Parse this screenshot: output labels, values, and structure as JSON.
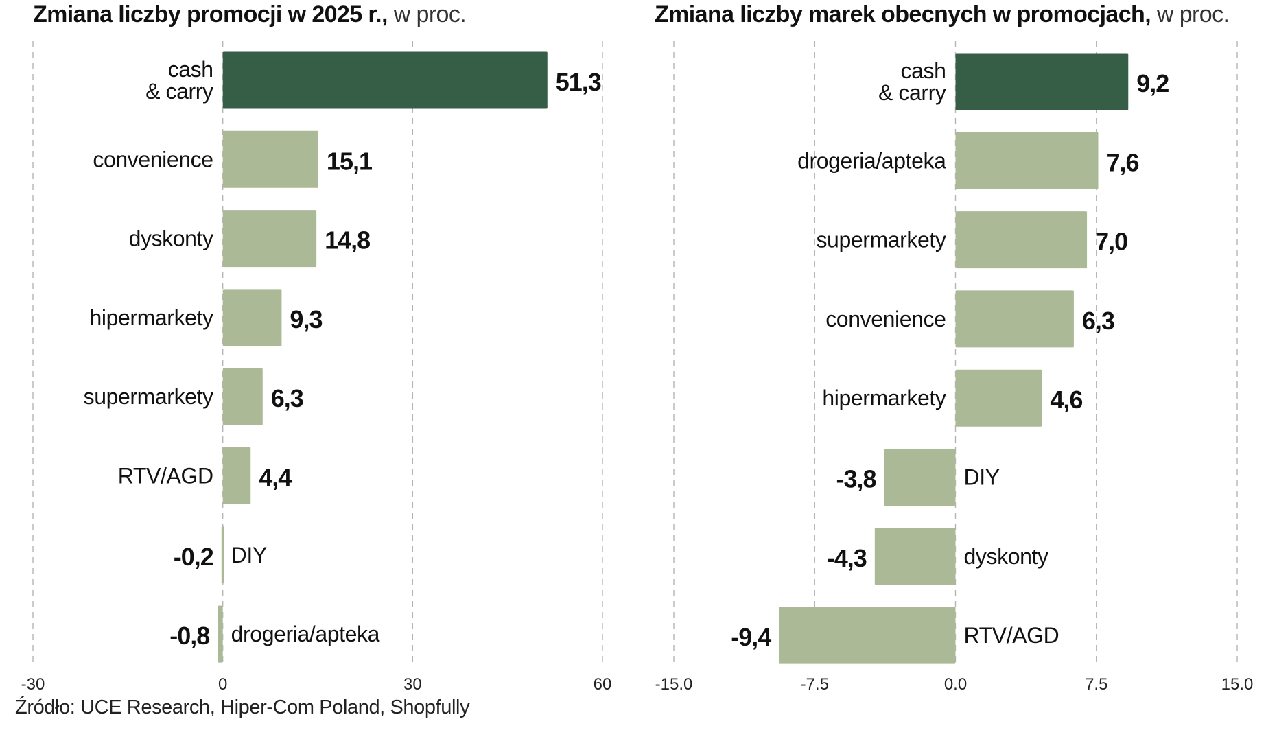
{
  "colors": {
    "highlight": "#365d46",
    "bar": "#abb997",
    "grid": "#b5b5b5",
    "text": "#111111"
  },
  "source": "Źródło: UCE Research, Hiper-Com Poland, Shopfully",
  "chart_data": [
    {
      "type": "bar",
      "orientation": "horizontal",
      "title": "Zmiana liczby promocji w 2025 r.,",
      "subtitle": "w proc.",
      "categories": [
        "cash\n& carry",
        "convenience",
        "dyskonty",
        "hipermarkety",
        "supermarkety",
        "RTV/AGD",
        "DIY",
        "drogeria/apteka"
      ],
      "values": [
        51.3,
        15.1,
        14.8,
        9.3,
        6.3,
        4.4,
        -0.2,
        -0.8
      ],
      "value_labels": [
        "51,3",
        "15,1",
        "14,8",
        "9,3",
        "6,3",
        "4,4",
        "-0,2",
        "-0,8"
      ],
      "highlight_index": 0,
      "xlim": [
        -30,
        60
      ],
      "xticks": [
        -30,
        0,
        30,
        60
      ],
      "xtick_labels": [
        "-30",
        "0",
        "30",
        "60"
      ],
      "grid": true
    },
    {
      "type": "bar",
      "orientation": "horizontal",
      "title": "Zmiana liczby marek obecnych w promocjach,",
      "subtitle": "w proc.",
      "categories": [
        "cash\n& carry",
        "drogeria/apteka",
        "supermarkety",
        "convenience",
        "hipermarkety",
        "DIY",
        "dyskonty",
        "RTV/AGD"
      ],
      "values": [
        9.2,
        7.6,
        7.0,
        6.3,
        4.6,
        -3.8,
        -4.3,
        -9.4
      ],
      "value_labels": [
        "9,2",
        "7,6",
        "7,0",
        "6,3",
        "4,6",
        "-3,8",
        "-4,3",
        "-9,4"
      ],
      "highlight_index": 0,
      "xlim": [
        -15,
        15
      ],
      "xticks": [
        -15,
        -7.5,
        0,
        7.5,
        15
      ],
      "xtick_labels": [
        "-15.0",
        "-7.5",
        "0.0",
        "7.5",
        "15.0"
      ],
      "grid": true
    }
  ]
}
